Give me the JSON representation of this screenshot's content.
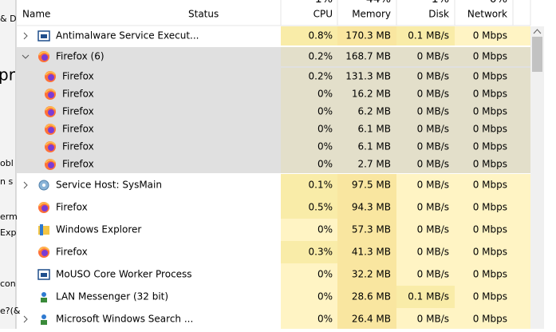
{
  "background_fragments": [
    "& D",
    "pr",
    "obl",
    "n s",
    "erm",
    "Exp",
    "con",
    "e?(&"
  ],
  "header": {
    "columns": [
      "Name",
      "Status",
      "CPU",
      "Memory",
      "Disk",
      "Network"
    ],
    "usage": [
      "1%",
      "44%",
      "1%",
      "0%"
    ]
  },
  "rows": [
    {
      "name": "Antimalware Service Execut...",
      "cpu": "0.8%",
      "memory": "170.3 MB",
      "disk": "0.1 MB/s",
      "network": "0 Mbps",
      "icon": "shield",
      "expandable": true
    },
    {
      "name": "Firefox (6)",
      "cpu": "0.2%",
      "memory": "168.7 MB",
      "disk": "0 MB/s",
      "network": "0 Mbps",
      "icon": "firefox",
      "expandable": true,
      "expanded": true,
      "children": [
        {
          "name": "Firefox",
          "cpu": "0.2%",
          "memory": "131.3 MB",
          "disk": "0 MB/s",
          "network": "0 Mbps"
        },
        {
          "name": "Firefox",
          "cpu": "0%",
          "memory": "16.2 MB",
          "disk": "0 MB/s",
          "network": "0 Mbps"
        },
        {
          "name": "Firefox",
          "cpu": "0%",
          "memory": "6.2 MB",
          "disk": "0 MB/s",
          "network": "0 Mbps"
        },
        {
          "name": "Firefox",
          "cpu": "0%",
          "memory": "6.1 MB",
          "disk": "0 MB/s",
          "network": "0 Mbps"
        },
        {
          "name": "Firefox",
          "cpu": "0%",
          "memory": "6.1 MB",
          "disk": "0 MB/s",
          "network": "0 Mbps"
        },
        {
          "name": "Firefox",
          "cpu": "0%",
          "memory": "2.7 MB",
          "disk": "0 MB/s",
          "network": "0 Mbps"
        }
      ]
    },
    {
      "name": "Service Host: SysMain",
      "cpu": "0.1%",
      "memory": "97.5 MB",
      "disk": "0 MB/s",
      "network": "0 Mbps",
      "icon": "gear",
      "expandable": true
    },
    {
      "name": "Firefox",
      "cpu": "0.5%",
      "memory": "94.3 MB",
      "disk": "0 MB/s",
      "network": "0 Mbps",
      "icon": "firefox"
    },
    {
      "name": "Windows Explorer",
      "cpu": "0%",
      "memory": "57.3 MB",
      "disk": "0 MB/s",
      "network": "0 Mbps",
      "icon": "folder"
    },
    {
      "name": "Firefox",
      "cpu": "0.3%",
      "memory": "41.3 MB",
      "disk": "0 MB/s",
      "network": "0 Mbps",
      "icon": "firefox"
    },
    {
      "name": "MoUSO Core Worker Process",
      "cpu": "0%",
      "memory": "32.2 MB",
      "disk": "0 MB/s",
      "network": "0 Mbps",
      "icon": "window"
    },
    {
      "name": "LAN Messenger (32 bit)",
      "cpu": "0%",
      "memory": "28.6 MB",
      "disk": "0.1 MB/s",
      "network": "0 Mbps",
      "icon": "person"
    },
    {
      "name": "Microsoft Windows Search ...",
      "cpu": "0%",
      "memory": "26.4 MB",
      "disk": "0 MB/s",
      "network": "0 Mbps",
      "icon": "person",
      "expandable": true
    }
  ]
}
